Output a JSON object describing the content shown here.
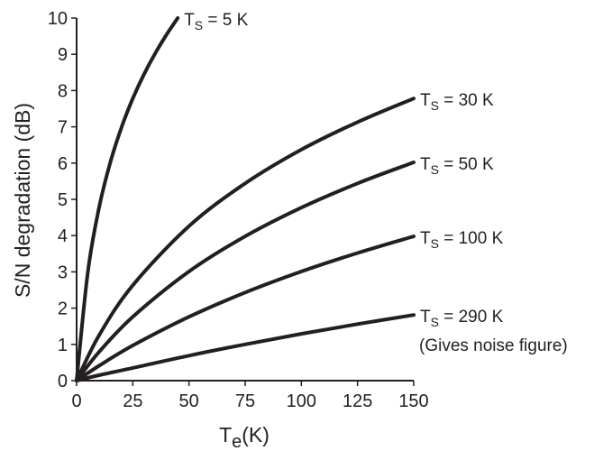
{
  "chart_data": {
    "type": "line",
    "title": "",
    "xlabel": "T",
    "xlabel_sub": "e",
    "xlabel_suffix": "(K)",
    "ylabel": "S/N degradation (dB)",
    "xlim": [
      0,
      150
    ],
    "ylim": [
      0,
      10
    ],
    "xticks": [
      0,
      25,
      50,
      75,
      100,
      125,
      150
    ],
    "yticks": [
      0,
      1,
      2,
      3,
      4,
      5,
      6,
      7,
      8,
      9,
      10
    ],
    "grid": false,
    "legend": "inline-labels-right",
    "series": [
      {
        "name": "T",
        "name_sub": "S",
        "name_suffix": " = 5 K",
        "x": [
          0,
          5,
          10,
          15,
          20,
          25,
          30,
          35,
          40,
          45
        ],
        "y": [
          0,
          3.0,
          4.77,
          6.02,
          6.99,
          7.78,
          8.45,
          9.03,
          9.54,
          10.0
        ]
      },
      {
        "name": "T",
        "name_sub": "S",
        "name_suffix": " = 30 K",
        "x": [
          0,
          10,
          25,
          50,
          75,
          100,
          125,
          150
        ],
        "y": [
          0,
          1.25,
          2.63,
          4.26,
          5.44,
          6.37,
          7.13,
          7.78
        ]
      },
      {
        "name": "T",
        "name_sub": "S",
        "name_suffix": " = 50 K",
        "x": [
          0,
          10,
          25,
          50,
          75,
          100,
          125,
          150
        ],
        "y": [
          0,
          0.79,
          1.76,
          3.01,
          3.98,
          4.77,
          5.44,
          6.02
        ]
      },
      {
        "name": "T",
        "name_sub": "S",
        "name_suffix": " = 100 K",
        "x": [
          0,
          10,
          25,
          50,
          75,
          100,
          125,
          150
        ],
        "y": [
          0,
          0.41,
          0.97,
          1.76,
          2.43,
          3.01,
          3.52,
          3.98
        ]
      },
      {
        "name": "T",
        "name_sub": "S",
        "name_suffix": " = 290 K",
        "note": "(Gives noise figure)",
        "x": [
          0,
          10,
          25,
          50,
          75,
          100,
          125,
          150
        ],
        "y": [
          0,
          0.15,
          0.35,
          0.69,
          1.0,
          1.29,
          1.56,
          1.81
        ]
      }
    ]
  }
}
